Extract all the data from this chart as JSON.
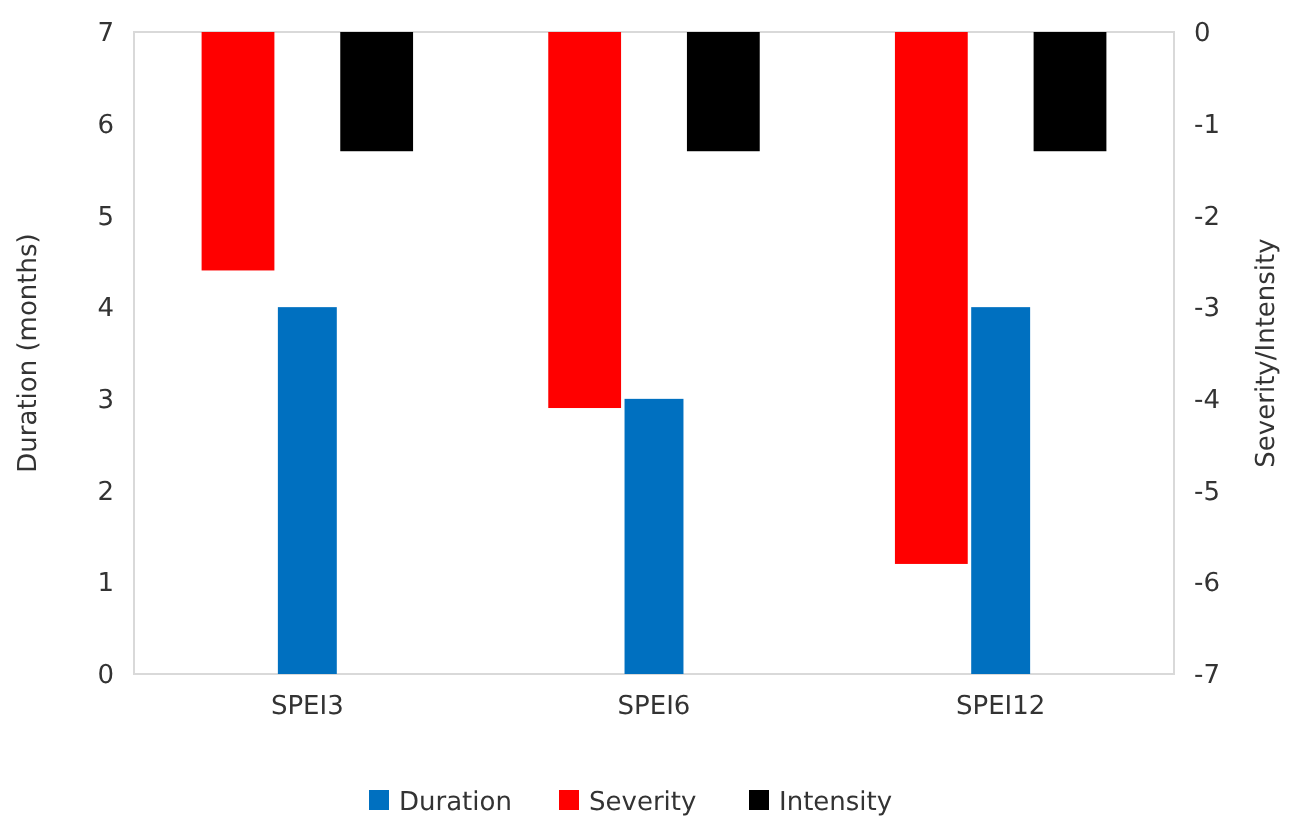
{
  "chart_data": {
    "type": "bar",
    "categories": [
      "SPEI3",
      "SPEI6",
      "SPEI12"
    ],
    "ylabel": "Duration (months)",
    "y2label": "Severity/Intensity",
    "ylim": [
      0,
      7
    ],
    "yticks": [
      0,
      1,
      2,
      3,
      4,
      5,
      6,
      7
    ],
    "y2lim": [
      -7,
      0
    ],
    "y2ticks": [
      -7,
      -6,
      -5,
      -4,
      -3,
      -2,
      -1,
      0
    ],
    "legend": "bottom",
    "grid": false,
    "series": [
      {
        "name": "Duration",
        "color": "#0070c0",
        "values": [
          4,
          3,
          4
        ]
      },
      {
        "name": "Severity",
        "color": "#ff0000",
        "values": [
          -2.6,
          -4.1,
          -5.8
        ],
        "axis": "y2"
      },
      {
        "name": "Intensity",
        "color": "#000000",
        "values": [
          -1.3,
          -1.3,
          -1.3
        ],
        "axis": "y2"
      }
    ]
  }
}
